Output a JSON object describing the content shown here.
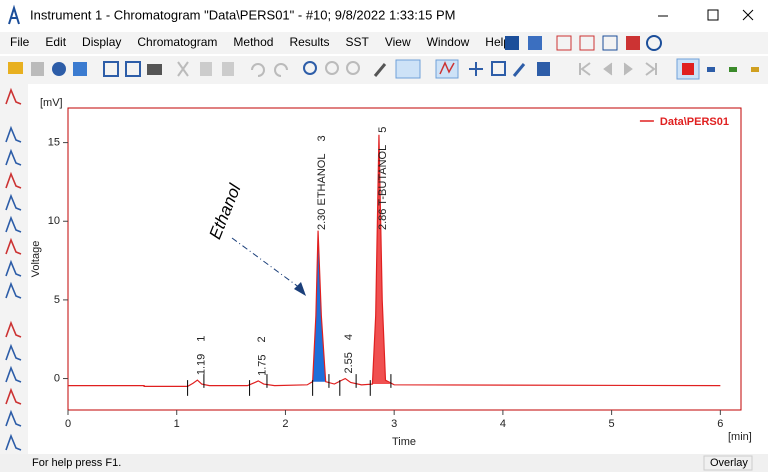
{
  "window": {
    "title": "Instrument 1 - Chromatogram \"Data\\PERS01\" - #10;   9/8/2022   1:33:15 PM"
  },
  "menu": [
    "File",
    "Edit",
    "Display",
    "Chromatogram",
    "Method",
    "Results",
    "SST",
    "View",
    "Window",
    "Help"
  ],
  "status_bar": {
    "help": "For help press F1.",
    "mode": "Overlay"
  },
  "chart_data": {
    "type": "line",
    "y_unit": "[mV]",
    "ylabel": "Voltage",
    "xlabel": "Time",
    "x_unit": "[min]",
    "xlim": [
      0,
      6.19
    ],
    "ylim": [
      -2,
      17.2
    ],
    "xticks": [
      0,
      1,
      2,
      3,
      4,
      5,
      6
    ],
    "yticks": [
      0,
      5,
      10,
      15
    ],
    "legend": "top-right",
    "annotation": "Ethanol",
    "series": [
      {
        "name": "Data\\PERS01",
        "color": "#e02020",
        "x": [
          0,
          0.7,
          0.7,
          1.1,
          1.15,
          1.19,
          1.23,
          1.3,
          1.65,
          1.72,
          1.75,
          1.8,
          1.9,
          2.2,
          2.25,
          2.28,
          2.3,
          2.33,
          2.37,
          2.45,
          2.52,
          2.55,
          2.6,
          2.7,
          2.8,
          2.83,
          2.86,
          2.89,
          2.92,
          3,
          6
        ],
        "values": [
          -0.45,
          -0.45,
          -0.5,
          -0.5,
          -0.3,
          -0.1,
          -0.35,
          -0.45,
          -0.45,
          -0.25,
          -0.15,
          -0.35,
          -0.45,
          -0.4,
          -0.2,
          4,
          9.4,
          4,
          -0.2,
          -0.35,
          -0.1,
          0.0,
          -0.25,
          -0.4,
          -0.35,
          4,
          15.5,
          5,
          -0.1,
          -0.4,
          -0.45
        ]
      }
    ],
    "peaks": [
      {
        "time": {
          "value": 1.19,
          "label": "1.19"
        },
        "number": 1,
        "start": 1.1,
        "end": 1.25
      },
      {
        "time": 1.75,
        "number": 2,
        "start": 1.67,
        "end": 1.83
      },
      {
        "time": {
          "value": 2.3,
          "label": "2.30"
        },
        "name": "ETHANOL",
        "number": 3,
        "start": 2.25,
        "end": 2.4,
        "fill": "#1e6fd9"
      },
      {
        "time": 2.55,
        "number": 4,
        "start": 2.5,
        "end": 2.65
      },
      {
        "time": 2.86,
        "name": "T-BUTANOL",
        "number": 5,
        "start": 2.78,
        "end": 2.97,
        "fill": "#f05050"
      }
    ]
  }
}
